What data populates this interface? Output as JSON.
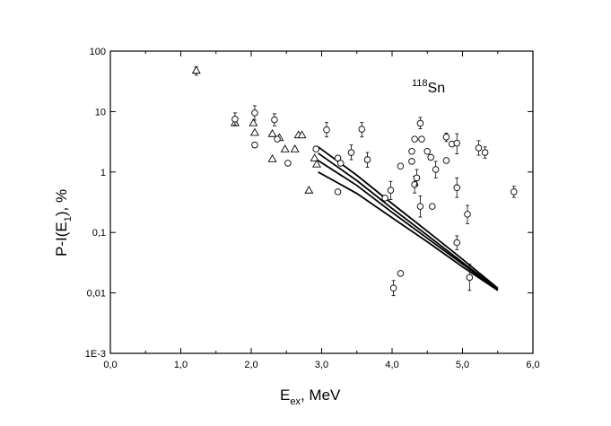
{
  "chart_data": {
    "type": "scatter",
    "x_axis": {
      "title_main": "E",
      "title_sub": "ex",
      "title_rest": ", MeV",
      "range": [
        0,
        6
      ],
      "ticks": [
        0,
        1,
        2,
        3,
        4,
        5,
        6
      ],
      "tick_labels": [
        "0,0",
        "1,0",
        "2,0",
        "3,0",
        "4,0",
        "5,0",
        "6,0"
      ]
    },
    "y_axis": {
      "title_main": "P-I(E",
      "title_sub": "1",
      "title_rest": "), %",
      "scale": "log",
      "range": [
        0.001,
        100
      ],
      "ticks": [
        0.001,
        0.01,
        0.1,
        1,
        10,
        100
      ],
      "tick_labels": [
        "1E-3",
        "0,01",
        "0,1",
        "1",
        "10",
        "100"
      ]
    },
    "annotation": {
      "sup": "118",
      "text": "Sn"
    },
    "grid": false,
    "series": [
      {
        "marker": "triangle",
        "points": [
          {
            "x": 1.22,
            "y": 48,
            "lo": 40,
            "hi": 55
          },
          {
            "x": 1.77,
            "y": 6.5
          },
          {
            "x": 2.03,
            "y": 6.5
          },
          {
            "x": 2.05,
            "y": 4.5
          },
          {
            "x": 2.3,
            "y": 4.3
          },
          {
            "x": 2.3,
            "y": 1.65
          },
          {
            "x": 2.4,
            "y": 3.7
          },
          {
            "x": 2.48,
            "y": 2.4
          },
          {
            "x": 2.62,
            "y": 2.4
          },
          {
            "x": 2.67,
            "y": 4.1
          },
          {
            "x": 2.72,
            "y": 4.1
          },
          {
            "x": 2.82,
            "y": 0.5
          },
          {
            "x": 2.9,
            "y": 1.7
          },
          {
            "x": 2.93,
            "y": 1.35
          }
        ]
      },
      {
        "marker": "circle",
        "points": [
          {
            "x": 1.77,
            "y": 7.5,
            "lo": 6,
            "hi": 9.5
          },
          {
            "x": 2.05,
            "y": 9.5,
            "lo": 7.2,
            "hi": 12.5
          },
          {
            "x": 2.05,
            "y": 2.8
          },
          {
            "x": 2.33,
            "y": 7.3,
            "lo": 5.8,
            "hi": 9.2
          },
          {
            "x": 2.37,
            "y": 3.5
          },
          {
            "x": 2.52,
            "y": 1.4
          },
          {
            "x": 2.92,
            "y": 2.4
          },
          {
            "x": 3.07,
            "y": 5.0,
            "lo": 3.8,
            "hi": 6.6
          },
          {
            "x": 3.23,
            "y": 1.7
          },
          {
            "x": 3.27,
            "y": 1.4
          },
          {
            "x": 3.23,
            "y": 0.47
          },
          {
            "x": 3.42,
            "y": 2.1,
            "lo": 1.6,
            "hi": 2.8
          },
          {
            "x": 3.57,
            "y": 5.1,
            "lo": 3.8,
            "hi": 6.6
          },
          {
            "x": 3.65,
            "y": 1.6,
            "lo": 1.2,
            "hi": 2.1
          },
          {
            "x": 3.9,
            "y": 0.37
          },
          {
            "x": 3.98,
            "y": 0.5,
            "lo": 0.35,
            "hi": 0.7
          },
          {
            "x": 4.02,
            "y": 0.012,
            "lo": 0.009,
            "hi": 0.016
          },
          {
            "x": 4.12,
            "y": 1.25
          },
          {
            "x": 4.12,
            "y": 0.021
          },
          {
            "x": 4.28,
            "y": 2.2
          },
          {
            "x": 4.28,
            "y": 1.5
          },
          {
            "x": 4.32,
            "y": 3.5
          },
          {
            "x": 4.32,
            "y": 0.62,
            "lo": 0.45,
            "hi": 0.85
          },
          {
            "x": 4.35,
            "y": 0.8,
            "lo": 0.6,
            "hi": 1.1
          },
          {
            "x": 4.4,
            "y": 6.4,
            "lo": 5.2,
            "hi": 8.0
          },
          {
            "x": 4.4,
            "y": 0.27,
            "lo": 0.18,
            "hi": 0.4
          },
          {
            "x": 4.42,
            "y": 3.5
          },
          {
            "x": 4.5,
            "y": 2.2
          },
          {
            "x": 4.55,
            "y": 1.75
          },
          {
            "x": 4.57,
            "y": 0.27
          },
          {
            "x": 4.62,
            "y": 1.1,
            "lo": 0.8,
            "hi": 1.5
          },
          {
            "x": 4.77,
            "y": 3.8,
            "lo": 3.2,
            "hi": 4.4
          },
          {
            "x": 4.77,
            "y": 1.55
          },
          {
            "x": 4.85,
            "y": 2.9
          },
          {
            "x": 4.92,
            "y": 3.0,
            "lo": 2.0,
            "hi": 4.3
          },
          {
            "x": 4.92,
            "y": 0.55,
            "lo": 0.38,
            "hi": 0.8
          },
          {
            "x": 4.92,
            "y": 0.068,
            "lo": 0.052,
            "hi": 0.088
          },
          {
            "x": 5.07,
            "y": 0.2,
            "lo": 0.14,
            "hi": 0.28
          },
          {
            "x": 5.1,
            "y": 0.018,
            "lo": 0.011,
            "hi": 0.03
          },
          {
            "x": 5.23,
            "y": 2.5,
            "lo": 1.9,
            "hi": 3.3
          },
          {
            "x": 5.32,
            "y": 2.1,
            "lo": 1.7,
            "hi": 2.6
          },
          {
            "x": 5.73,
            "y": 0.47,
            "lo": 0.38,
            "hi": 0.58
          }
        ]
      }
    ],
    "curves": [
      {
        "x": [
          2.95,
          3.5,
          4.0,
          4.5,
          5.0,
          5.5
        ],
        "y": [
          2.6,
          0.88,
          0.3,
          0.105,
          0.036,
          0.012
        ]
      },
      {
        "x": [
          2.95,
          3.5,
          4.0,
          4.5,
          5.0,
          5.5
        ],
        "y": [
          2.05,
          0.72,
          0.25,
          0.09,
          0.032,
          0.0115
        ]
      },
      {
        "x": [
          2.95,
          3.5,
          4.0,
          4.5,
          5.0,
          5.5
        ],
        "y": [
          1.55,
          0.6,
          0.215,
          0.08,
          0.03,
          0.0112
        ]
      },
      {
        "x": [
          2.95,
          3.5,
          4.0,
          4.5,
          5.0,
          5.5
        ],
        "y": [
          1.0,
          0.44,
          0.175,
          0.07,
          0.027,
          0.011
        ]
      }
    ]
  }
}
